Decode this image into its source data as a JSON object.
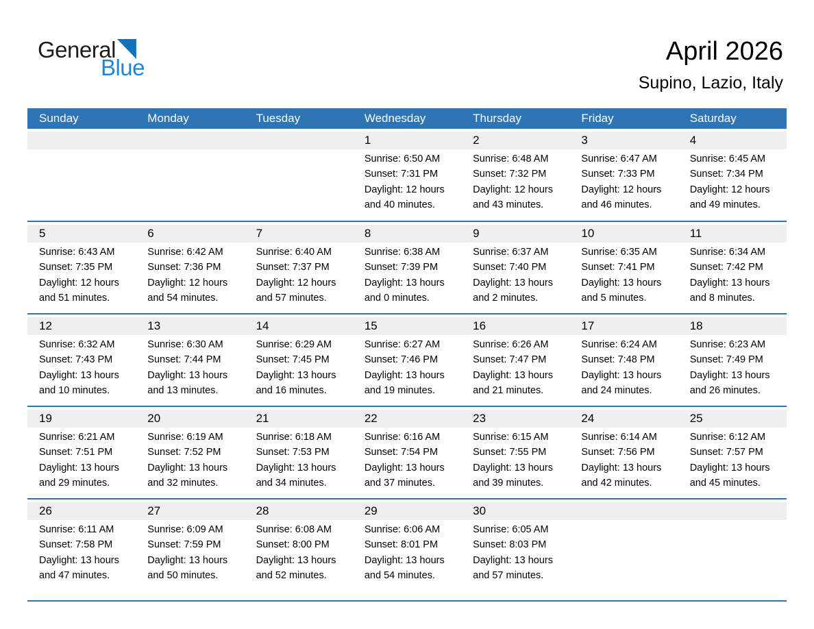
{
  "logo": {
    "general": "General",
    "blue": "Blue"
  },
  "header": {
    "title": "April 2026",
    "subtitle": "Supino, Lazio, Italy"
  },
  "colors": {
    "header_blue": "#2E75B5",
    "row_border_blue": "#2E75B5",
    "day_band_gray": "#EFEFEF",
    "logo_triangle_blue": "#1072BA",
    "logo_blue_text": "#1E87D3"
  },
  "weekdays": [
    "Sunday",
    "Monday",
    "Tuesday",
    "Wednesday",
    "Thursday",
    "Friday",
    "Saturday"
  ],
  "weeks": [
    [
      null,
      null,
      null,
      {
        "day": "1",
        "sunrise": "Sunrise: 6:50 AM",
        "sunset": "Sunset: 7:31 PM",
        "daylight1": "Daylight: 12 hours",
        "daylight2": "and 40 minutes."
      },
      {
        "day": "2",
        "sunrise": "Sunrise: 6:48 AM",
        "sunset": "Sunset: 7:32 PM",
        "daylight1": "Daylight: 12 hours",
        "daylight2": "and 43 minutes."
      },
      {
        "day": "3",
        "sunrise": "Sunrise: 6:47 AM",
        "sunset": "Sunset: 7:33 PM",
        "daylight1": "Daylight: 12 hours",
        "daylight2": "and 46 minutes."
      },
      {
        "day": "4",
        "sunrise": "Sunrise: 6:45 AM",
        "sunset": "Sunset: 7:34 PM",
        "daylight1": "Daylight: 12 hours",
        "daylight2": "and 49 minutes."
      }
    ],
    [
      {
        "day": "5",
        "sunrise": "Sunrise: 6:43 AM",
        "sunset": "Sunset: 7:35 PM",
        "daylight1": "Daylight: 12 hours",
        "daylight2": "and 51 minutes."
      },
      {
        "day": "6",
        "sunrise": "Sunrise: 6:42 AM",
        "sunset": "Sunset: 7:36 PM",
        "daylight1": "Daylight: 12 hours",
        "daylight2": "and 54 minutes."
      },
      {
        "day": "7",
        "sunrise": "Sunrise: 6:40 AM",
        "sunset": "Sunset: 7:37 PM",
        "daylight1": "Daylight: 12 hours",
        "daylight2": "and 57 minutes."
      },
      {
        "day": "8",
        "sunrise": "Sunrise: 6:38 AM",
        "sunset": "Sunset: 7:39 PM",
        "daylight1": "Daylight: 13 hours",
        "daylight2": "and 0 minutes."
      },
      {
        "day": "9",
        "sunrise": "Sunrise: 6:37 AM",
        "sunset": "Sunset: 7:40 PM",
        "daylight1": "Daylight: 13 hours",
        "daylight2": "and 2 minutes."
      },
      {
        "day": "10",
        "sunrise": "Sunrise: 6:35 AM",
        "sunset": "Sunset: 7:41 PM",
        "daylight1": "Daylight: 13 hours",
        "daylight2": "and 5 minutes."
      },
      {
        "day": "11",
        "sunrise": "Sunrise: 6:34 AM",
        "sunset": "Sunset: 7:42 PM",
        "daylight1": "Daylight: 13 hours",
        "daylight2": "and 8 minutes."
      }
    ],
    [
      {
        "day": "12",
        "sunrise": "Sunrise: 6:32 AM",
        "sunset": "Sunset: 7:43 PM",
        "daylight1": "Daylight: 13 hours",
        "daylight2": "and 10 minutes."
      },
      {
        "day": "13",
        "sunrise": "Sunrise: 6:30 AM",
        "sunset": "Sunset: 7:44 PM",
        "daylight1": "Daylight: 13 hours",
        "daylight2": "and 13 minutes."
      },
      {
        "day": "14",
        "sunrise": "Sunrise: 6:29 AM",
        "sunset": "Sunset: 7:45 PM",
        "daylight1": "Daylight: 13 hours",
        "daylight2": "and 16 minutes."
      },
      {
        "day": "15",
        "sunrise": "Sunrise: 6:27 AM",
        "sunset": "Sunset: 7:46 PM",
        "daylight1": "Daylight: 13 hours",
        "daylight2": "and 19 minutes."
      },
      {
        "day": "16",
        "sunrise": "Sunrise: 6:26 AM",
        "sunset": "Sunset: 7:47 PM",
        "daylight1": "Daylight: 13 hours",
        "daylight2": "and 21 minutes."
      },
      {
        "day": "17",
        "sunrise": "Sunrise: 6:24 AM",
        "sunset": "Sunset: 7:48 PM",
        "daylight1": "Daylight: 13 hours",
        "daylight2": "and 24 minutes."
      },
      {
        "day": "18",
        "sunrise": "Sunrise: 6:23 AM",
        "sunset": "Sunset: 7:49 PM",
        "daylight1": "Daylight: 13 hours",
        "daylight2": "and 26 minutes."
      }
    ],
    [
      {
        "day": "19",
        "sunrise": "Sunrise: 6:21 AM",
        "sunset": "Sunset: 7:51 PM",
        "daylight1": "Daylight: 13 hours",
        "daylight2": "and 29 minutes."
      },
      {
        "day": "20",
        "sunrise": "Sunrise: 6:19 AM",
        "sunset": "Sunset: 7:52 PM",
        "daylight1": "Daylight: 13 hours",
        "daylight2": "and 32 minutes."
      },
      {
        "day": "21",
        "sunrise": "Sunrise: 6:18 AM",
        "sunset": "Sunset: 7:53 PM",
        "daylight1": "Daylight: 13 hours",
        "daylight2": "and 34 minutes."
      },
      {
        "day": "22",
        "sunrise": "Sunrise: 6:16 AM",
        "sunset": "Sunset: 7:54 PM",
        "daylight1": "Daylight: 13 hours",
        "daylight2": "and 37 minutes."
      },
      {
        "day": "23",
        "sunrise": "Sunrise: 6:15 AM",
        "sunset": "Sunset: 7:55 PM",
        "daylight1": "Daylight: 13 hours",
        "daylight2": "and 39 minutes."
      },
      {
        "day": "24",
        "sunrise": "Sunrise: 6:14 AM",
        "sunset": "Sunset: 7:56 PM",
        "daylight1": "Daylight: 13 hours",
        "daylight2": "and 42 minutes."
      },
      {
        "day": "25",
        "sunrise": "Sunrise: 6:12 AM",
        "sunset": "Sunset: 7:57 PM",
        "daylight1": "Daylight: 13 hours",
        "daylight2": "and 45 minutes."
      }
    ],
    [
      {
        "day": "26",
        "sunrise": "Sunrise: 6:11 AM",
        "sunset": "Sunset: 7:58 PM",
        "daylight1": "Daylight: 13 hours",
        "daylight2": "and 47 minutes."
      },
      {
        "day": "27",
        "sunrise": "Sunrise: 6:09 AM",
        "sunset": "Sunset: 7:59 PM",
        "daylight1": "Daylight: 13 hours",
        "daylight2": "and 50 minutes."
      },
      {
        "day": "28",
        "sunrise": "Sunrise: 6:08 AM",
        "sunset": "Sunset: 8:00 PM",
        "daylight1": "Daylight: 13 hours",
        "daylight2": "and 52 minutes."
      },
      {
        "day": "29",
        "sunrise": "Sunrise: 6:06 AM",
        "sunset": "Sunset: 8:01 PM",
        "daylight1": "Daylight: 13 hours",
        "daylight2": "and 54 minutes."
      },
      {
        "day": "30",
        "sunrise": "Sunrise: 6:05 AM",
        "sunset": "Sunset: 8:03 PM",
        "daylight1": "Daylight: 13 hours",
        "daylight2": "and 57 minutes."
      },
      null,
      null
    ]
  ]
}
